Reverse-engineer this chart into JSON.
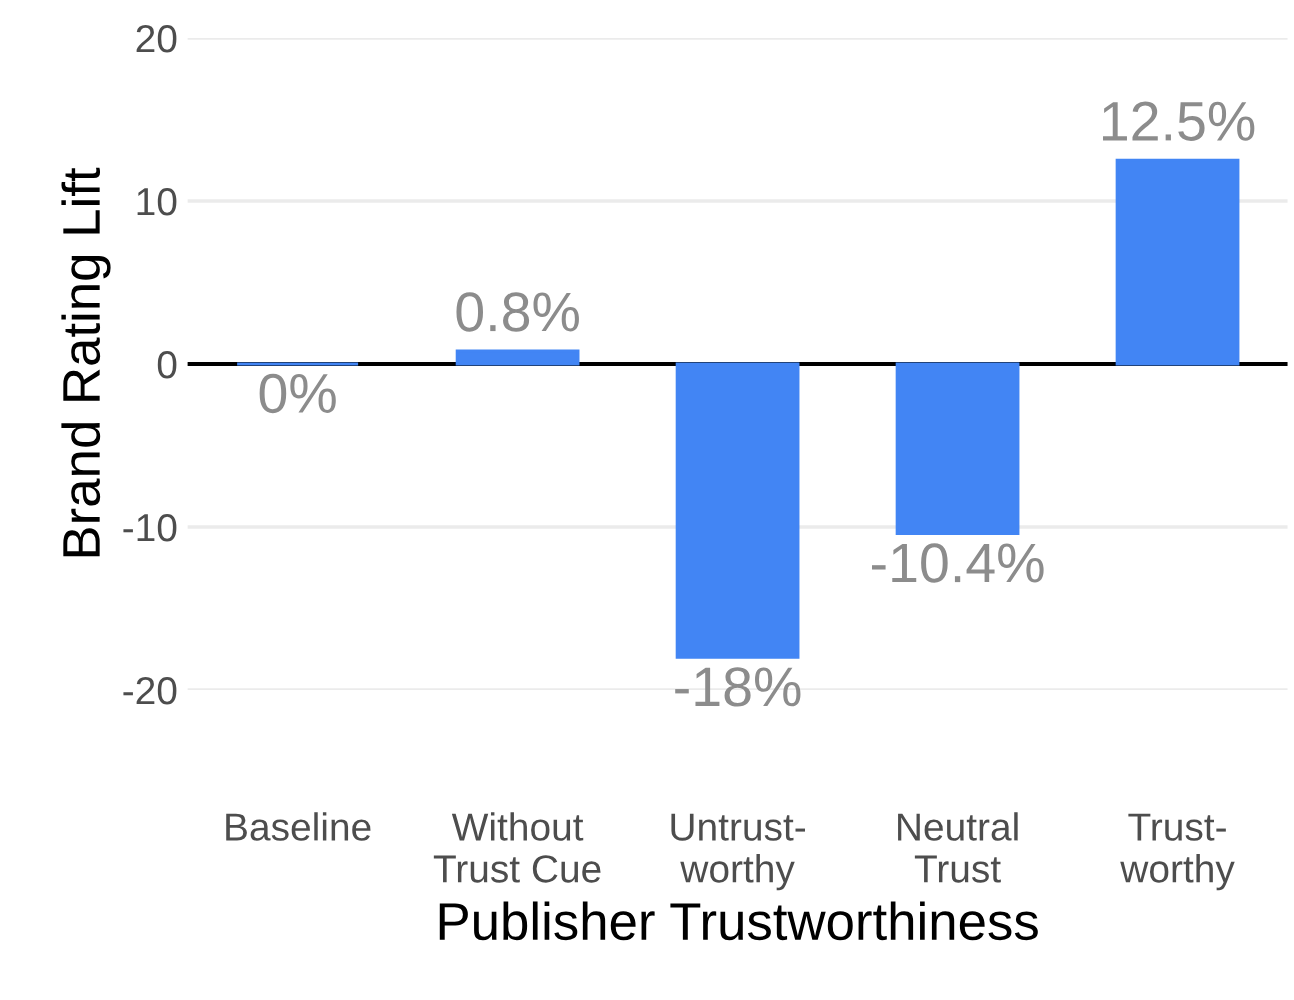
{
  "chart_data": {
    "type": "bar",
    "xlabel": "Publisher Trustworthiness",
    "ylabel": "Brand Rating Lift",
    "categories": [
      "Baseline",
      "Without\nTrust Cue",
      "Untrust-\nworthy",
      "Neutral\nTrust",
      "Trust-\nworthy"
    ],
    "values": [
      0,
      0.8,
      -18,
      -10.4,
      12.5
    ],
    "color": "#4285f4",
    "value_labels": [
      "0%",
      "0.8%",
      "-18%",
      "-10.4%",
      "12.5%"
    ],
    "ylim": [
      -20,
      20
    ],
    "yticks": [
      -20,
      -10,
      0,
      10,
      20
    ],
    "grid": "y",
    "ref_lines": [
      {
        "axis": "y",
        "value": 0,
        "color": "#000000"
      }
    ]
  }
}
